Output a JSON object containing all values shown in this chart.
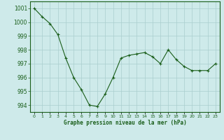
{
  "x": [
    0,
    1,
    2,
    3,
    4,
    5,
    6,
    7,
    8,
    9,
    10,
    11,
    12,
    13,
    14,
    15,
    16,
    17,
    18,
    19,
    20,
    21,
    22,
    23
  ],
  "y": [
    1001.0,
    1000.4,
    999.9,
    999.1,
    997.4,
    996.0,
    995.1,
    994.0,
    993.9,
    994.8,
    996.0,
    997.4,
    997.6,
    997.7,
    997.8,
    997.5,
    997.0,
    998.0,
    997.3,
    996.8,
    996.5,
    996.5,
    996.5,
    997.0
  ],
  "line_color": "#1a5e1a",
  "marker": "+",
  "bg_color": "#ceeaea",
  "grid_color": "#aacece",
  "xlabel": "Graphe pression niveau de la mer (hPa)",
  "xlabel_color": "#1a5e1a",
  "tick_color": "#1a5e1a",
  "ylim": [
    993.5,
    1001.5
  ],
  "yticks": [
    994,
    995,
    996,
    997,
    998,
    999,
    1000,
    1001
  ],
  "xlim": [
    -0.5,
    23.5
  ],
  "xticks": [
    0,
    1,
    2,
    3,
    4,
    5,
    6,
    7,
    8,
    9,
    10,
    11,
    12,
    13,
    14,
    15,
    16,
    17,
    18,
    19,
    20,
    21,
    22,
    23
  ]
}
